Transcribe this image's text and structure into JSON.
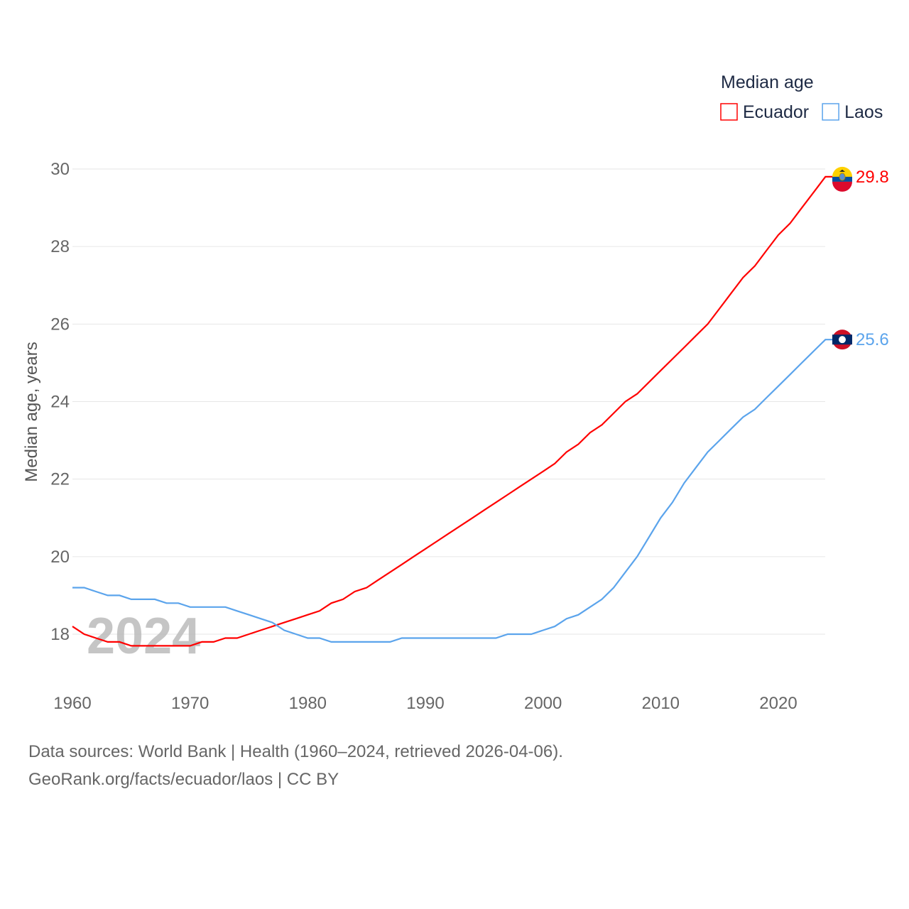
{
  "chart_data": {
    "type": "line",
    "title": "Median age",
    "ylabel": "Median age, years",
    "xlabel": "",
    "watermark_year": "2024",
    "xlim": [
      1960,
      2024
    ],
    "ylim": [
      17,
      30.5
    ],
    "x_ticks": [
      "1960",
      "1970",
      "1980",
      "1990",
      "2000",
      "2010",
      "2020"
    ],
    "y_ticks": [
      "18",
      "20",
      "22",
      "24",
      "26",
      "28",
      "30"
    ],
    "grid": true,
    "legend_position": "top-right",
    "x": [
      1960,
      1961,
      1962,
      1963,
      1964,
      1965,
      1966,
      1967,
      1968,
      1969,
      1970,
      1971,
      1972,
      1973,
      1974,
      1975,
      1976,
      1977,
      1978,
      1979,
      1980,
      1981,
      1982,
      1983,
      1984,
      1985,
      1986,
      1987,
      1988,
      1989,
      1990,
      1991,
      1992,
      1993,
      1994,
      1995,
      1996,
      1997,
      1998,
      1999,
      2000,
      2001,
      2002,
      2003,
      2004,
      2005,
      2006,
      2007,
      2008,
      2009,
      2010,
      2011,
      2012,
      2013,
      2014,
      2015,
      2016,
      2017,
      2018,
      2019,
      2020,
      2021,
      2022,
      2023,
      2024
    ],
    "series": [
      {
        "name": "Ecuador",
        "color": "#ff0000",
        "last_label": "29.8",
        "values": [
          18.2,
          18.0,
          17.9,
          17.8,
          17.8,
          17.7,
          17.7,
          17.7,
          17.7,
          17.7,
          17.7,
          17.8,
          17.8,
          17.9,
          17.9,
          18.0,
          18.1,
          18.2,
          18.3,
          18.4,
          18.5,
          18.6,
          18.8,
          18.9,
          19.1,
          19.2,
          19.4,
          19.6,
          19.8,
          20.0,
          20.2,
          20.4,
          20.6,
          20.8,
          21.0,
          21.2,
          21.4,
          21.6,
          21.8,
          22.0,
          22.2,
          22.4,
          22.7,
          22.9,
          23.2,
          23.4,
          23.7,
          24.0,
          24.2,
          24.5,
          24.8,
          25.1,
          25.4,
          25.7,
          26.0,
          26.4,
          26.8,
          27.2,
          27.5,
          27.9,
          28.3,
          28.6,
          29.0,
          29.4,
          29.8
        ]
      },
      {
        "name": "Laos",
        "color": "#5ba4ec",
        "last_label": "25.6",
        "values": [
          19.2,
          19.2,
          19.1,
          19.0,
          19.0,
          18.9,
          18.9,
          18.9,
          18.8,
          18.8,
          18.7,
          18.7,
          18.7,
          18.7,
          18.6,
          18.5,
          18.4,
          18.3,
          18.1,
          18.0,
          17.9,
          17.9,
          17.8,
          17.8,
          17.8,
          17.8,
          17.8,
          17.8,
          17.9,
          17.9,
          17.9,
          17.9,
          17.9,
          17.9,
          17.9,
          17.9,
          17.9,
          18.0,
          18.0,
          18.0,
          18.1,
          18.2,
          18.4,
          18.5,
          18.7,
          18.9,
          19.2,
          19.6,
          20.0,
          20.5,
          21.0,
          21.4,
          21.9,
          22.3,
          22.7,
          23.0,
          23.3,
          23.6,
          23.8,
          24.1,
          24.4,
          24.7,
          25.0,
          25.3,
          25.6
        ]
      }
    ]
  },
  "footer": {
    "line1": "Data sources: World Bank | Health (1960–2024, retrieved 2026-04-06).",
    "line2": "GeoRank.org/facts/ecuador/laos | CC BY"
  }
}
